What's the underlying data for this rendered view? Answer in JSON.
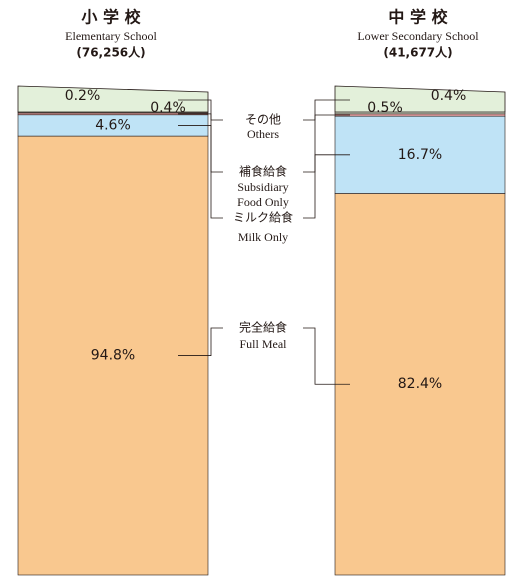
{
  "chart_data": {
    "type": "stacked_bar",
    "categories": [
      "小 学 校",
      "中 学 校"
    ],
    "categories_en": [
      "Elementary School",
      "Lower Secondary School"
    ],
    "category_counts": [
      "(76,256人)",
      "(41,677人)"
    ],
    "ylim": [
      0,
      100
    ],
    "series": [
      {
        "name": "完全給食",
        "name_en": "Full Meal",
        "color": "#f9c88f",
        "values": [
          94.8,
          82.4
        ],
        "value_labels": [
          "94.8%",
          "82.4%"
        ]
      },
      {
        "name": "ミルク給食",
        "name_en": "Milk Only",
        "color": "#bfe3f6",
        "values": [
          4.6,
          16.7
        ],
        "value_labels": [
          "4.6%",
          "16.7%"
        ]
      },
      {
        "name": "補食給食",
        "name_en": "Subsidiary Food Only",
        "color": "#e7a3a3",
        "values": [
          0.4,
          0.5
        ],
        "value_labels": [
          "0.4%",
          "0.5%"
        ]
      },
      {
        "name": "その他",
        "name_en": "Others",
        "color": "#e3f0da",
        "values": [
          0.2,
          0.4
        ],
        "value_labels": [
          "0.2%",
          "0.4%"
        ]
      }
    ]
  }
}
